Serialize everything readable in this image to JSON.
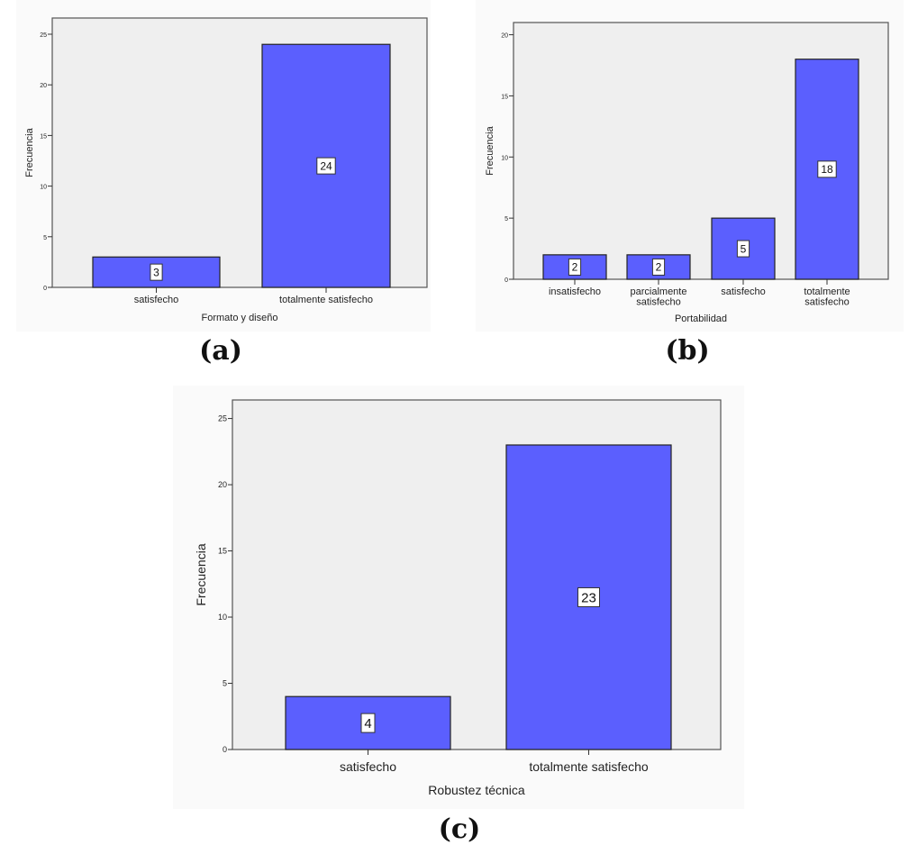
{
  "chart_data": [
    {
      "type": "bar",
      "caption": "(a)",
      "xlabel": "Formato y diseño",
      "ylabel": "Frecuencia",
      "categories": [
        "satisfecho",
        "totalmente satisfecho"
      ],
      "values": [
        3,
        24
      ],
      "data_labels": [
        "3",
        "24"
      ],
      "yticks": [
        0,
        5,
        10,
        15,
        20,
        25
      ],
      "ylim": [
        0,
        26.6
      ],
      "grid": false,
      "bar_color": "#5b5ffe",
      "plot_background": "#efefef"
    },
    {
      "type": "bar",
      "caption": "(b)",
      "xlabel": "Portabilidad",
      "ylabel": "Frecuencia",
      "categories": [
        "insatisfecho",
        "parcialmente\nsatisfecho",
        "satisfecho",
        "totalmente\nsatisfecho"
      ],
      "values": [
        2,
        2,
        5,
        18
      ],
      "data_labels": [
        "2",
        "2",
        "5",
        "18"
      ],
      "yticks": [
        0,
        5,
        10,
        15,
        20
      ],
      "ylim": [
        0,
        21
      ],
      "grid": false,
      "bar_color": "#5b5ffe",
      "plot_background": "#efefef"
    },
    {
      "type": "bar",
      "caption": "(c)",
      "xlabel": "Robustez técnica",
      "ylabel": "Frecuencia",
      "categories": [
        "satisfecho",
        "totalmente satisfecho"
      ],
      "values": [
        4,
        23
      ],
      "data_labels": [
        "4",
        "23"
      ],
      "yticks": [
        0,
        5,
        10,
        15,
        20,
        25
      ],
      "ylim": [
        0,
        26.4
      ],
      "grid": false,
      "bar_color": "#5b5ffe",
      "plot_background": "#efefef"
    }
  ]
}
